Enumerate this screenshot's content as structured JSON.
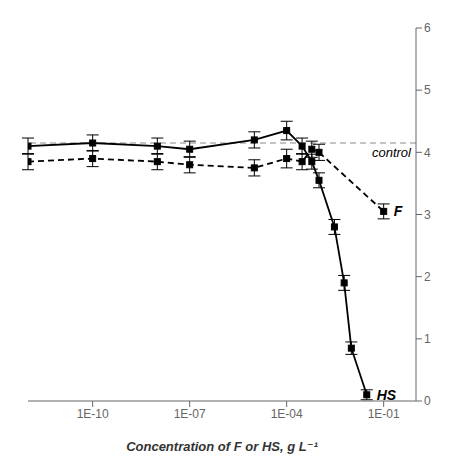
{
  "chart_data": {
    "type": "line",
    "xlabel": "Concentration of F or HS, g L⁻¹",
    "log": "x",
    "xlim": [
      1e-12,
      1
    ],
    "xticks": [
      {
        "value": 1e-10,
        "label": "1E-10"
      },
      {
        "value": 1e-07,
        "label": "1E-07"
      },
      {
        "value": 0.0001,
        "label": "1E-04"
      },
      {
        "value": 0.1,
        "label": "1E-01"
      }
    ],
    "ylim": [
      0,
      6
    ],
    "yticks": [
      0,
      1,
      2,
      3,
      4,
      5,
      6
    ],
    "grid": false,
    "series": [
      {
        "name": "HS",
        "color": "#000000",
        "marker": "square",
        "line_style": "solid",
        "x": [
          1e-12,
          1e-10,
          1e-08,
          1e-07,
          1e-05,
          0.0001,
          0.0003,
          0.0006,
          0.001,
          0.003,
          0.006,
          0.01,
          0.03
        ],
        "values": [
          4.1,
          4.15,
          4.1,
          4.05,
          4.2,
          4.35,
          4.1,
          3.85,
          3.55,
          2.8,
          1.9,
          0.85,
          0.1
        ],
        "errors": [
          0.13,
          0.13,
          0.13,
          0.13,
          0.13,
          0.15,
          0.13,
          0.12,
          0.12,
          0.12,
          0.12,
          0.1,
          0.08
        ]
      },
      {
        "name": "F",
        "color": "#000000",
        "marker": "square",
        "line_style": "dashed",
        "x": [
          1e-12,
          1e-10,
          1e-08,
          1e-07,
          1e-05,
          0.0001,
          0.0003,
          0.0006,
          0.001,
          0.1
        ],
        "values": [
          3.85,
          3.9,
          3.85,
          3.8,
          3.75,
          3.9,
          3.85,
          4.05,
          4.0,
          3.05
        ],
        "errors": [
          0.13,
          0.13,
          0.13,
          0.13,
          0.13,
          0.15,
          0.13,
          0.13,
          0.13,
          0.12
        ]
      }
    ],
    "control": {
      "value": 4.15,
      "label": "control",
      "color": "#888888",
      "line_style": "dashed"
    }
  }
}
